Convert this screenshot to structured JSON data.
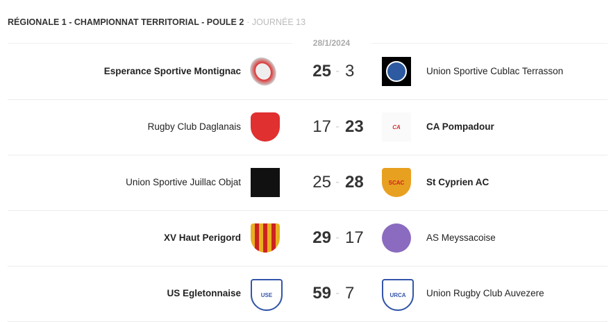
{
  "header": {
    "title": "RÉGIONALE 1 - CHAMPIONNAT TERRITORIAL - POULE 2",
    "round": "· JOURNÉE 13"
  },
  "date": "28/1/2024",
  "matches": [
    {
      "home": "Esperance Sportive Montignac",
      "away": "Union Sportive Cublac Terrasson",
      "home_score": "25",
      "away_score": "3",
      "winner": "home"
    },
    {
      "home": "Rugby Club Daglanais",
      "away": "CA Pompadour",
      "home_score": "17",
      "away_score": "23",
      "winner": "away"
    },
    {
      "home": "Union Sportive Juillac Objat",
      "away": "St Cyprien AC",
      "home_score": "25",
      "away_score": "28",
      "winner": "away"
    },
    {
      "home": "XV Haut Perigord",
      "away": "AS Meyssacoise",
      "home_score": "29",
      "away_score": "17",
      "winner": "home"
    },
    {
      "home": "US Egletonnaise",
      "away": "Union Rugby Club Auvezere",
      "home_score": "59",
      "away_score": "7",
      "winner": "home"
    }
  ],
  "separator": "-"
}
